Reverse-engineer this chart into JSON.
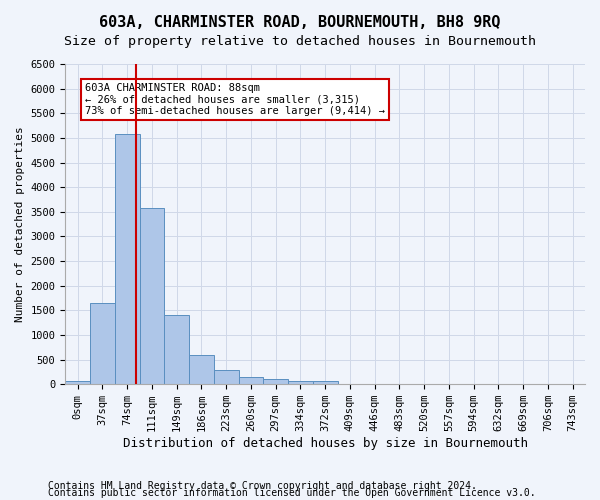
{
  "title": "603A, CHARMINSTER ROAD, BOURNEMOUTH, BH8 9RQ",
  "subtitle": "Size of property relative to detached houses in Bournemouth",
  "xlabel": "Distribution of detached houses by size in Bournemouth",
  "ylabel": "Number of detached properties",
  "footer1": "Contains HM Land Registry data © Crown copyright and database right 2024.",
  "footer2": "Contains public sector information licensed under the Open Government Licence v3.0.",
  "bin_labels": [
    "0sqm",
    "37sqm",
    "74sqm",
    "111sqm",
    "149sqm",
    "186sqm",
    "223sqm",
    "260sqm",
    "297sqm",
    "334sqm",
    "372sqm",
    "409sqm",
    "446sqm",
    "483sqm",
    "520sqm",
    "557sqm",
    "594sqm",
    "632sqm",
    "669sqm",
    "706sqm",
    "743sqm"
  ],
  "bar_values": [
    70,
    1640,
    5080,
    3580,
    1400,
    590,
    295,
    155,
    100,
    75,
    60,
    0,
    0,
    0,
    0,
    0,
    0,
    0,
    0,
    0,
    0
  ],
  "bar_color": "#aec6e8",
  "bar_edge_color": "#5a8fc0",
  "grid_color": "#d0d8e8",
  "vline_x": 2.375,
  "vline_color": "#cc0000",
  "annotation_text": "603A CHARMINSTER ROAD: 88sqm\n← 26% of detached houses are smaller (3,315)\n73% of semi-detached houses are larger (9,414) →",
  "annotation_box_color": "#cc0000",
  "ylim": [
    0,
    6500
  ],
  "yticks": [
    0,
    500,
    1000,
    1500,
    2000,
    2500,
    3000,
    3500,
    4000,
    4500,
    5000,
    5500,
    6000,
    6500
  ],
  "bg_color": "#f0f4fb",
  "plot_bg_color": "#f0f4fb",
  "title_fontsize": 11,
  "subtitle_fontsize": 9.5,
  "xlabel_fontsize": 9,
  "ylabel_fontsize": 8,
  "tick_fontsize": 7.5,
  "footer_fontsize": 7
}
